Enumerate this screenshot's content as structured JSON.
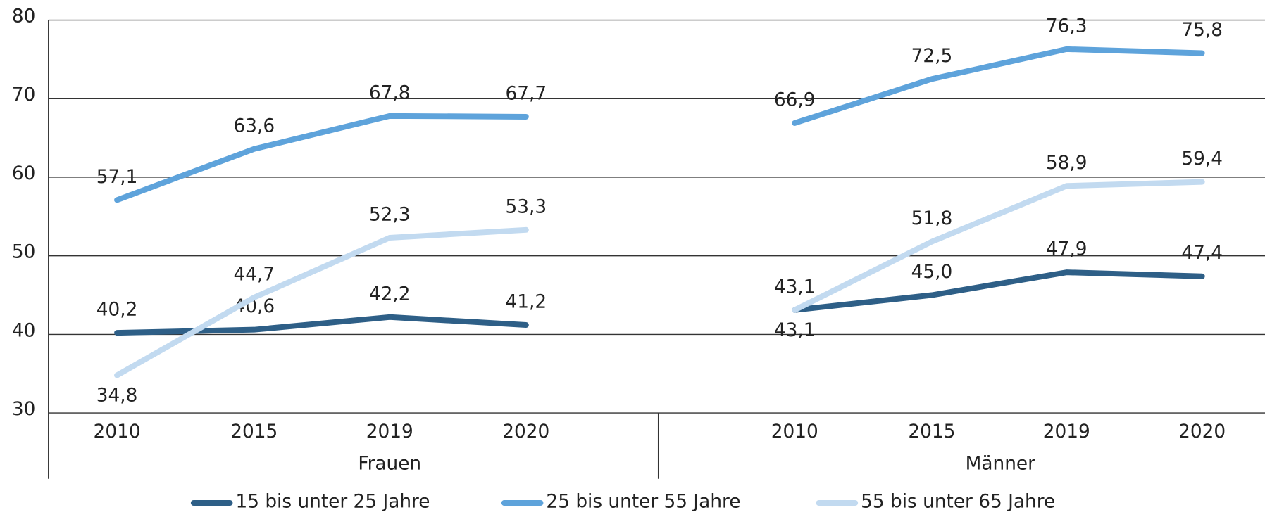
{
  "chart_data": {
    "type": "line",
    "categories": [
      "2010",
      "2015",
      "2019",
      "2020",
      "2010",
      "2015",
      "2019",
      "2020"
    ],
    "groups": [
      "Frauen",
      "Männer"
    ],
    "series": [
      {
        "name": "15 bis unter 25 Jahre",
        "color": "#2e5f87",
        "values": [
          40.2,
          40.6,
          42.2,
          41.2,
          43.1,
          45.0,
          47.9,
          47.4
        ],
        "value_labels": [
          "40,2",
          "40,6",
          "42,2",
          "41,2",
          "43,1",
          "45,0",
          "47,9",
          "47,4"
        ]
      },
      {
        "name": "25 bis unter 55 Jahre",
        "color": "#5ea3db",
        "values": [
          57.1,
          63.6,
          67.8,
          67.7,
          66.9,
          72.5,
          76.3,
          75.8
        ],
        "value_labels": [
          "57,1",
          "63,6",
          "67,8",
          "67,7",
          "66,9",
          "72,5",
          "76,3",
          "75,8"
        ]
      },
      {
        "name": "55 bis unter 65 Jahre",
        "color": "#c2daf0",
        "values": [
          34.8,
          44.7,
          52.3,
          53.3,
          43.1,
          51.8,
          58.9,
          59.4
        ],
        "value_labels": [
          "34,8",
          "44,7",
          "52,3",
          "53,3",
          "43,1",
          "51,8",
          "58,9",
          "59,4"
        ]
      }
    ],
    "ylim": [
      30,
      80
    ],
    "yticks": [
      30,
      40,
      50,
      60,
      70,
      80
    ],
    "grid": true
  }
}
